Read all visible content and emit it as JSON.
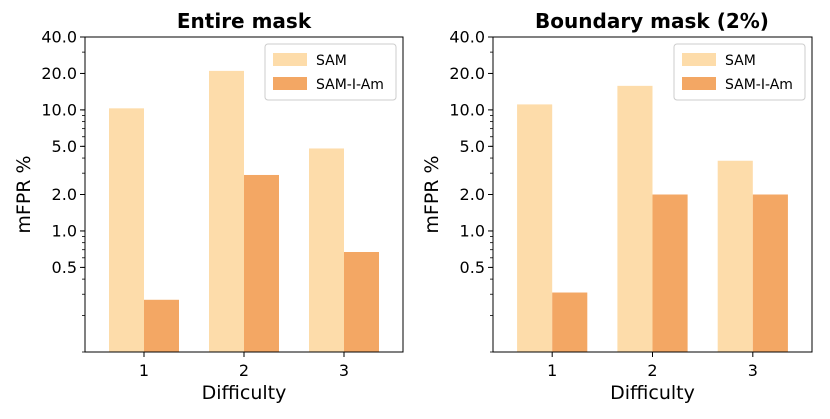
{
  "chart_data": [
    {
      "type": "bar",
      "title": "Entire mask",
      "xlabel": "Difficulty",
      "ylabel": "mFPR %",
      "yscale": "log",
      "ylim": [
        0.1,
        40.0
      ],
      "yticks": [
        "40.0",
        "20.0",
        "10.0",
        "5.0",
        "2.0",
        "1.0",
        "0.5"
      ],
      "categories": [
        "1",
        "2",
        "3"
      ],
      "series": [
        {
          "name": "SAM",
          "values": [
            10.3,
            21.0,
            4.8
          ]
        },
        {
          "name": "SAM-I-Am",
          "values": [
            0.27,
            2.9,
            0.67
          ]
        }
      ],
      "legend_position": "top-right",
      "grid": false
    },
    {
      "type": "bar",
      "title": "Boundary mask (2%)",
      "xlabel": "Difficulty",
      "ylabel": "mFPR %",
      "yscale": "log",
      "ylim": [
        0.1,
        40.0
      ],
      "yticks": [
        "40.0",
        "20.0",
        "10.0",
        "5.0",
        "2.0",
        "1.0",
        "0.5"
      ],
      "categories": [
        "1",
        "2",
        "3"
      ],
      "series": [
        {
          "name": "SAM",
          "values": [
            11.1,
            15.8,
            3.8
          ]
        },
        {
          "name": "SAM-I-Am",
          "values": [
            0.31,
            2.0,
            2.0
          ]
        }
      ],
      "legend_position": "top-right",
      "grid": false
    }
  ],
  "colors": {
    "SAM": "#fddcaa",
    "SAM-I-Am": "#f3a764"
  }
}
